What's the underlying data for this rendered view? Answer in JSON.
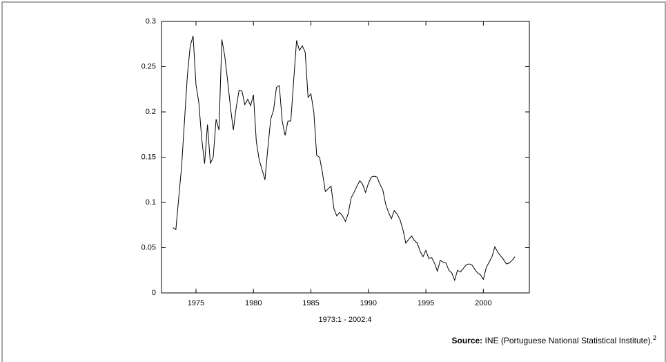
{
  "chart_data": {
    "type": "line",
    "x_label": "1973:1 - 2002:4",
    "color": "#000000",
    "xlim": [
      1972,
      2004
    ],
    "xticks": [
      1975,
      1980,
      1985,
      1990,
      1995,
      2000
    ],
    "ylim": [
      0,
      0.3
    ],
    "yticks": [
      0,
      0.05,
      0.1,
      0.15,
      0.2,
      0.25,
      0.3
    ],
    "x": [
      1973,
      1973.25,
      1973.5,
      1973.75,
      1974,
      1974.25,
      1974.5,
      1974.75,
      1975,
      1975.25,
      1975.5,
      1975.75,
      1976,
      1976.25,
      1976.5,
      1976.75,
      1977,
      1977.25,
      1977.5,
      1977.75,
      1978,
      1978.25,
      1978.5,
      1978.75,
      1979,
      1979.25,
      1979.5,
      1979.75,
      1980,
      1980.25,
      1980.5,
      1980.75,
      1981,
      1981.25,
      1981.5,
      1981.75,
      1982,
      1982.25,
      1982.5,
      1982.75,
      1983,
      1983.25,
      1983.5,
      1983.75,
      1984,
      1984.25,
      1984.5,
      1984.75,
      1985,
      1985.25,
      1985.5,
      1985.75,
      1986,
      1986.25,
      1986.5,
      1986.75,
      1987,
      1987.25,
      1987.5,
      1987.75,
      1988,
      1988.25,
      1988.5,
      1988.75,
      1989,
      1989.25,
      1989.5,
      1989.75,
      1990,
      1990.25,
      1990.5,
      1990.75,
      1991,
      1991.25,
      1991.5,
      1991.75,
      1992,
      1992.25,
      1992.5,
      1992.75,
      1993,
      1993.25,
      1993.5,
      1993.75,
      1994,
      1994.25,
      1994.5,
      1994.75,
      1995,
      1995.25,
      1995.5,
      1995.75,
      1996,
      1996.25,
      1996.5,
      1996.75,
      1997,
      1997.25,
      1997.5,
      1997.75,
      1998,
      1998.25,
      1998.5,
      1998.75,
      1999,
      1999.25,
      1999.5,
      1999.75,
      2000,
      2000.25,
      2000.5,
      2000.75,
      2001,
      2001.25,
      2001.5,
      2001.75,
      2002,
      2002.25,
      2002.5,
      2002.75
    ],
    "values": [
      0.072,
      0.07,
      0.105,
      0.14,
      0.19,
      0.24,
      0.273,
      0.284,
      0.23,
      0.21,
      0.17,
      0.143,
      0.186,
      0.143,
      0.15,
      0.192,
      0.18,
      0.28,
      0.262,
      0.235,
      0.205,
      0.18,
      0.205,
      0.224,
      0.223,
      0.208,
      0.214,
      0.207,
      0.219,
      0.167,
      0.147,
      0.136,
      0.125,
      0.16,
      0.192,
      0.202,
      0.227,
      0.229,
      0.19,
      0.174,
      0.19,
      0.19,
      0.235,
      0.279,
      0.268,
      0.273,
      0.266,
      0.216,
      0.22,
      0.2,
      0.152,
      0.15,
      0.133,
      0.112,
      0.115,
      0.118,
      0.093,
      0.085,
      0.089,
      0.085,
      0.079,
      0.088,
      0.105,
      0.111,
      0.118,
      0.124,
      0.12,
      0.111,
      0.121,
      0.128,
      0.129,
      0.128,
      0.12,
      0.114,
      0.098,
      0.089,
      0.082,
      0.091,
      0.087,
      0.081,
      0.07,
      0.055,
      0.059,
      0.063,
      0.058,
      0.055,
      0.046,
      0.04,
      0.047,
      0.038,
      0.039,
      0.033,
      0.024,
      0.036,
      0.034,
      0.033,
      0.025,
      0.022,
      0.014,
      0.025,
      0.023,
      0.027,
      0.031,
      0.032,
      0.031,
      0.026,
      0.022,
      0.02,
      0.015,
      0.028,
      0.034,
      0.04,
      0.051,
      0.045,
      0.041,
      0.037,
      0.032,
      0.033,
      0.036,
      0.04
    ]
  },
  "source": {
    "label": "Source:",
    "text": "INE (Portuguese National Statistical Institute).",
    "footnote": "2"
  }
}
